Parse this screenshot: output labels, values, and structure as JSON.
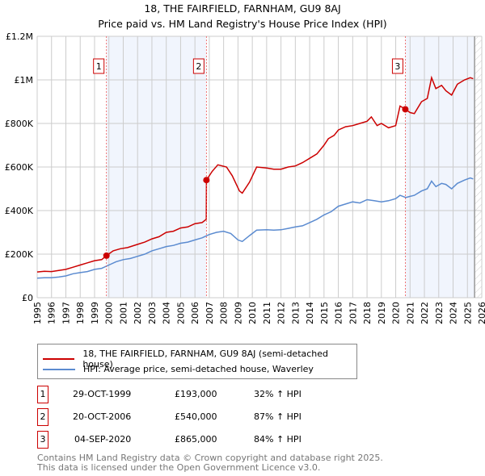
{
  "chart_data": {
    "type": "line",
    "title": "18, THE FAIRFIELD, FARNHAM, GU9 8AJ",
    "subtitle": "Price paid vs. HM Land Registry's House Price Index (HPI)",
    "xlim": [
      1995,
      2026
    ],
    "ylim": [
      0,
      1200000
    ],
    "y_ticks": [
      {
        "v": 0,
        "label": "£0"
      },
      {
        "v": 200000,
        "label": "£200K"
      },
      {
        "v": 400000,
        "label": "£400K"
      },
      {
        "v": 600000,
        "label": "£600K"
      },
      {
        "v": 800000,
        "label": "£800K"
      },
      {
        "v": 1000000,
        "label": "£1M"
      },
      {
        "v": 1200000,
        "label": "£1.2M"
      }
    ],
    "x_ticks": [
      "1995",
      "1996",
      "1997",
      "1998",
      "1999",
      "2000",
      "2001",
      "2002",
      "2003",
      "2004",
      "2005",
      "2006",
      "2007",
      "2008",
      "2009",
      "2010",
      "2011",
      "2012",
      "2013",
      "2014",
      "2015",
      "2016",
      "2017",
      "2018",
      "2019",
      "2020",
      "2021",
      "2022",
      "2023",
      "2024",
      "2025",
      "2026"
    ],
    "grid": true,
    "shaded_ranges": [
      [
        1999.83,
        2006.8
      ],
      [
        2020.67,
        2025.5
      ]
    ],
    "future_hatch_from": 2025.5,
    "series": [
      {
        "name": "18, THE FAIRFIELD, FARNHAM, GU9 8AJ (semi-detached house)",
        "color": "#cc0000",
        "x": [
          1995,
          1995.5,
          1996,
          1996.5,
          1997,
          1997.5,
          1998,
          1998.5,
          1999,
          1999.5,
          1999.83,
          2000.3,
          2000.8,
          2001.3,
          2002,
          2002.5,
          2003,
          2003.5,
          2004,
          2004.5,
          2005,
          2005.5,
          2006,
          2006.5,
          2006.79,
          2006.8,
          2007.2,
          2007.6,
          2008.2,
          2008.6,
          2009.1,
          2009.3,
          2009.8,
          2010.3,
          2011,
          2011.5,
          2012,
          2012.5,
          2013,
          2013.5,
          2014,
          2014.5,
          2015,
          2015.3,
          2015.7,
          2016,
          2016.5,
          2017,
          2017.5,
          2018,
          2018.3,
          2018.7,
          2019,
          2019.5,
          2020,
          2020.3,
          2020.67,
          2021,
          2021.3,
          2021.8,
          2022.2,
          2022.5,
          2022.8,
          2023.2,
          2023.5,
          2023.9,
          2024.3,
          2024.8,
          2025.2,
          2025.4
        ],
        "y": [
          118000,
          121000,
          120000,
          125000,
          130000,
          140000,
          150000,
          160000,
          170000,
          175000,
          193000,
          215000,
          225000,
          230000,
          245000,
          255000,
          270000,
          280000,
          300000,
          305000,
          320000,
          325000,
          340000,
          345000,
          360000,
          540000,
          580000,
          610000,
          600000,
          560000,
          490000,
          480000,
          530000,
          600000,
          595000,
          590000,
          590000,
          600000,
          605000,
          620000,
          640000,
          660000,
          700000,
          730000,
          745000,
          770000,
          785000,
          790000,
          800000,
          810000,
          830000,
          790000,
          800000,
          780000,
          790000,
          880000,
          865000,
          850000,
          845000,
          900000,
          915000,
          1010000,
          960000,
          975000,
          950000,
          930000,
          980000,
          1000000,
          1010000,
          1005000
        ]
      },
      {
        "name": "HPI: Average price, semi-detached house, Waverley",
        "color": "#5b8bd0",
        "x": [
          1995,
          1995.5,
          1996,
          1996.5,
          1997,
          1997.5,
          1998,
          1998.5,
          1999,
          1999.5,
          2000,
          2000.5,
          2001,
          2001.5,
          2002,
          2002.5,
          2003,
          2003.5,
          2004,
          2004.5,
          2005,
          2005.5,
          2006,
          2006.5,
          2007,
          2007.5,
          2008,
          2008.5,
          2009,
          2009.3,
          2009.8,
          2010.3,
          2011,
          2011.5,
          2012,
          2012.5,
          2013,
          2013.5,
          2014,
          2014.5,
          2015,
          2015.5,
          2016,
          2016.5,
          2017,
          2017.5,
          2018,
          2018.5,
          2019,
          2019.5,
          2020,
          2020.3,
          2020.7,
          2021,
          2021.3,
          2021.8,
          2022.2,
          2022.5,
          2022.8,
          2023.2,
          2023.5,
          2023.9,
          2024.3,
          2024.8,
          2025.2,
          2025.4
        ],
        "y": [
          90000,
          92000,
          92000,
          95000,
          100000,
          110000,
          115000,
          120000,
          130000,
          135000,
          150000,
          165000,
          175000,
          180000,
          190000,
          200000,
          215000,
          225000,
          235000,
          240000,
          250000,
          255000,
          265000,
          275000,
          290000,
          300000,
          305000,
          295000,
          265000,
          258000,
          285000,
          310000,
          312000,
          310000,
          312000,
          318000,
          325000,
          330000,
          345000,
          360000,
          380000,
          395000,
          420000,
          430000,
          440000,
          435000,
          450000,
          445000,
          440000,
          445000,
          455000,
          470000,
          460000,
          465000,
          470000,
          490000,
          500000,
          535000,
          510000,
          525000,
          520000,
          500000,
          525000,
          540000,
          550000,
          545000
        ]
      }
    ],
    "sales": [
      {
        "id": "1",
        "x": 1999.83,
        "y": 193000
      },
      {
        "id": "2",
        "x": 2006.8,
        "y": 540000
      },
      {
        "id": "3",
        "x": 2020.67,
        "y": 865000
      }
    ]
  },
  "legend": {
    "items": [
      "18, THE FAIRFIELD, FARNHAM, GU9 8AJ (semi-detached house)",
      "HPI: Average price, semi-detached house, Waverley"
    ]
  },
  "table": [
    {
      "id": "1",
      "date": "29-OCT-1999",
      "price": "£193,000",
      "hpi": "32% ↑ HPI"
    },
    {
      "id": "2",
      "date": "20-OCT-2006",
      "price": "£540,000",
      "hpi": "87% ↑ HPI"
    },
    {
      "id": "3",
      "date": "04-SEP-2020",
      "price": "£865,000",
      "hpi": "84% ↑ HPI"
    }
  ],
  "footer": {
    "line1": "Contains HM Land Registry data © Crown copyright and database right 2025.",
    "line2": "This data is licensed under the Open Government Licence v3.0."
  }
}
